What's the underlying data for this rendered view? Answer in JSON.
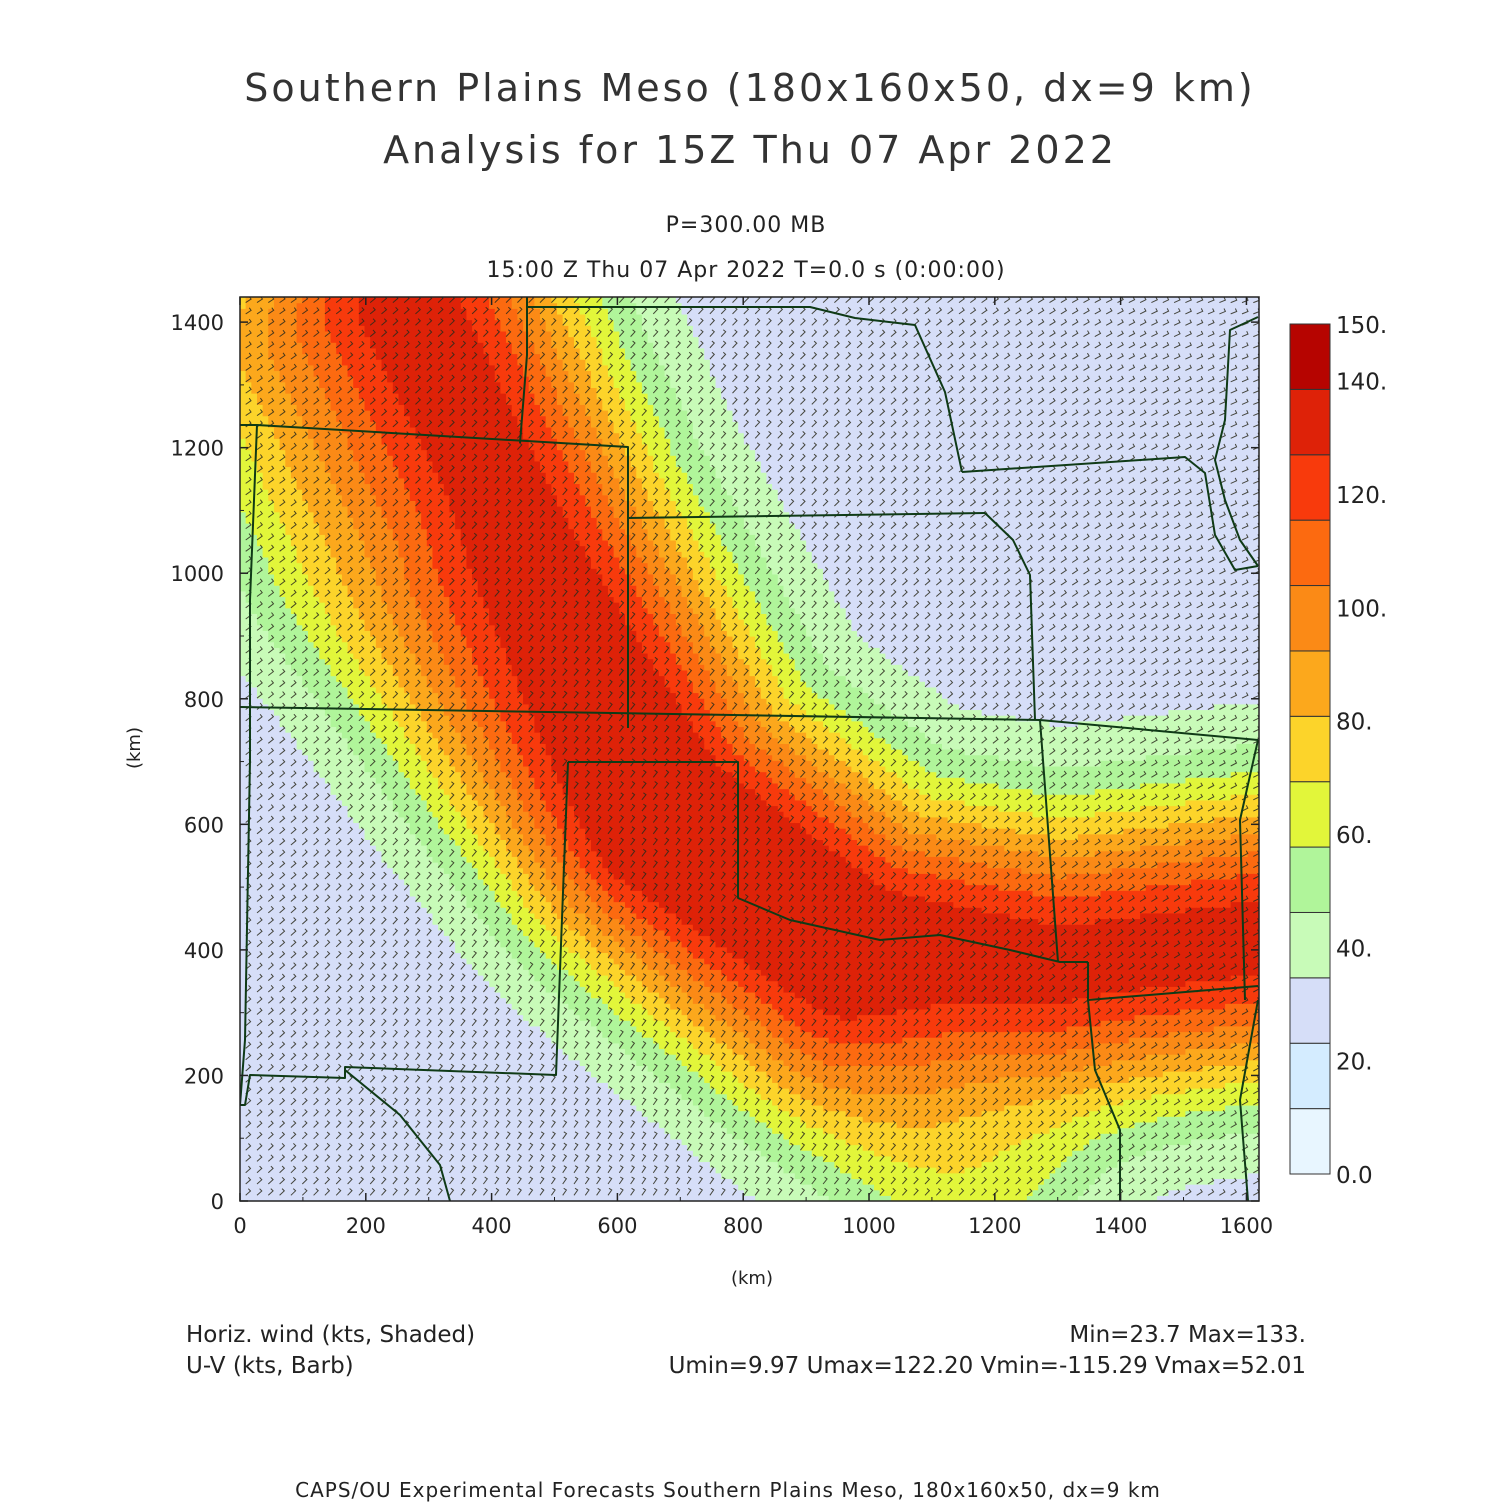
{
  "title": {
    "line1": "Southern Plains Meso (180x160x50, dx=9 km)",
    "line2": "Analysis for 15Z Thu 07 Apr 2022"
  },
  "level": "P=300.00 MB",
  "valid": "15:00 Z Thu 07 Apr 2022   T=0.0 s (0:00:00)",
  "axes": {
    "xlabel": "(km)",
    "ylabel": "(km)",
    "xticks": [
      "0",
      "200",
      "400",
      "600",
      "800",
      "1000",
      "1200",
      "1400",
      "1600"
    ],
    "yticks": [
      "0",
      "200",
      "400",
      "600",
      "800",
      "1000",
      "1200",
      "1400"
    ],
    "xlim": [
      0,
      1620
    ],
    "ylim": [
      0,
      1440
    ]
  },
  "colorbar": {
    "labels": [
      "0.0",
      "20.",
      "40.",
      "60.",
      "80.",
      "100.",
      "120.",
      "140.",
      "150."
    ],
    "colors": [
      "#e8f6ff",
      "#d4ecff",
      "#d6def8",
      "#c8fbb8",
      "#b0f59a",
      "#e2f63a",
      "#fcd42a",
      "#fca81c",
      "#fb8a16",
      "#fc6a10",
      "#f83a0c",
      "#de2208",
      "#b60400"
    ]
  },
  "legend": {
    "shaded": "Horiz. wind (kts, Shaded)",
    "barb": "U-V (kts, Barb)",
    "minmax": "Min=23.7 Max=133.",
    "uv": "Umin=9.97 Umax=122.20 Vmin=-115.29 Vmax=52.01"
  },
  "credit": "CAPS/OU Experimental Forecasts  Southern Plains Meso, 180x160x50, dx=9 km",
  "chart_data": {
    "type": "heatmap",
    "field": "Horiz. wind (kts)",
    "units": "kts",
    "value_range": [
      23.7,
      133
    ],
    "colorbar_range": [
      0,
      150
    ],
    "jet_axis_km": [
      [
        280,
        1440
      ],
      [
        460,
        1060
      ],
      [
        700,
        640
      ],
      [
        1000,
        430
      ],
      [
        1300,
        380
      ],
      [
        1620,
        420
      ]
    ],
    "jet_core_kts": 133,
    "secondary_jet_axis_km": [
      [
        0,
        1340
      ],
      [
        150,
        1000
      ],
      [
        400,
        700
      ],
      [
        700,
        400
      ],
      [
        1000,
        150
      ],
      [
        1150,
        0
      ]
    ],
    "secondary_jet_kts": 90,
    "calm_areas_km": [
      [
        60,
        350
      ],
      [
        20,
        40
      ],
      [
        1580,
        1320
      ]
    ],
    "calm_area_kts": 25,
    "wind_direction": "northwesterly to west-northwesterly flow",
    "overlay": "U-V wind barbs on a regular grid"
  }
}
